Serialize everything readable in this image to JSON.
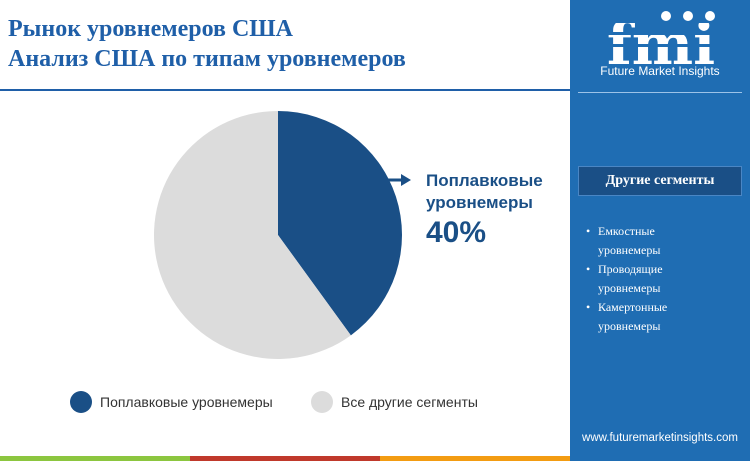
{
  "header": {
    "title_line1": "Рынок уровнемеров США",
    "title_line2": "Анализ США по типам уровнемеров"
  },
  "sidebar": {
    "logo_text": "fmi",
    "logo_tagline": "Future Market Insights",
    "segments_title": "Другие сегменты",
    "segments": [
      "Емкостные уровнемеры",
      "Проводящие уровнемеры",
      "Камертонные уровнемеры"
    ],
    "website": "www.futuremarketinsights.com"
  },
  "colors": {
    "primary": "#1f6db3",
    "title": "#1f5fa8",
    "float_slice": "#1a4f86",
    "other_slice": "#dcdcdc"
  },
  "chart_data": {
    "type": "pie",
    "slices": [
      {
        "name": "Поплавковые уровнемеры",
        "value": 40,
        "color": "#1a4f86"
      },
      {
        "name": "Все другие сегменты",
        "value": 60,
        "color": "#dcdcdc"
      }
    ],
    "callout": {
      "label_line1": "Поплавковые",
      "label_line2": "уровнемеры",
      "value_text": "40%"
    },
    "legend": [
      "Поплавковые уровнемеры",
      "Все другие сегменты"
    ],
    "legend_placement": "bottom"
  }
}
